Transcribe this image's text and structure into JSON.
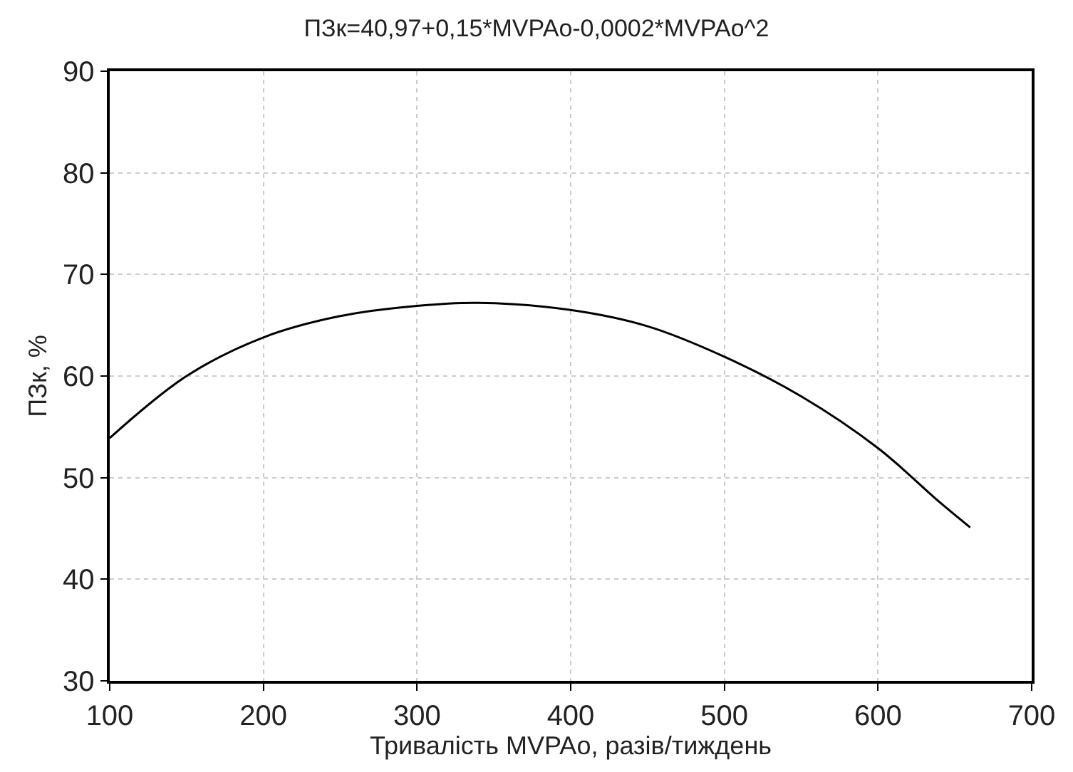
{
  "chart_data": {
    "type": "line",
    "title": "ПЗк=40,97+0,15*MVPAо-0,0002*MVPAо^2",
    "xlabel": "Тривалість MVPAо, разів/тиждень",
    "ylabel": "ПЗк, %",
    "x": [
      100,
      150,
      200,
      250,
      300,
      340,
      400,
      450,
      500,
      550,
      600,
      640,
      660
    ],
    "series": [
      {
        "color": "#000000",
        "values": [
          53.9,
          60.0,
          63.8,
          65.9,
          66.9,
          67.2,
          66.5,
          64.9,
          61.9,
          58.0,
          52.9,
          47.6,
          45.1
        ]
      }
    ],
    "xlim": [
      100,
      700
    ],
    "xticks": [
      100,
      200,
      300,
      400,
      500,
      600,
      700
    ],
    "ylim": [
      30,
      90
    ],
    "yticks": [
      30,
      40,
      50,
      60,
      70,
      80,
      90
    ],
    "grid": true,
    "legend": false,
    "marker": "none",
    "line_style": "solid"
  }
}
